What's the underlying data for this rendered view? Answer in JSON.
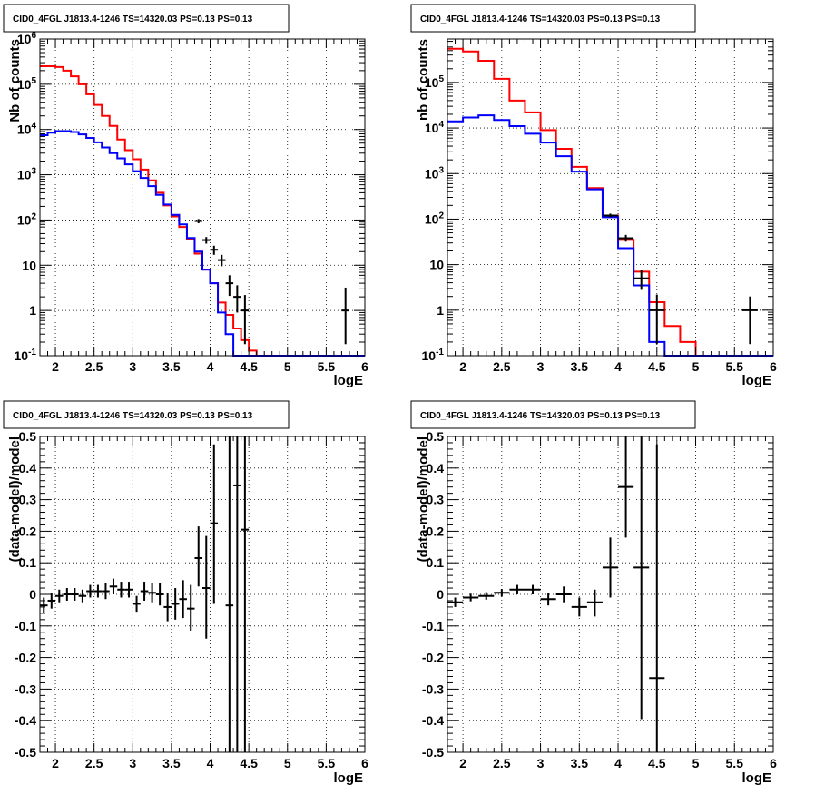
{
  "colors": {
    "data": "#000000",
    "model_red": "#ff0000",
    "model_blue": "#0000ff",
    "grid": "#000000",
    "background": "#ffffff"
  },
  "chart_data": [
    {
      "type": "line",
      "id": "tl",
      "title": "CID0_4FGL J1813.4-1246 TS=14320.03 PS=0.13 PS=0.13",
      "xlabel": "logE",
      "ylabel": "Nb of counts",
      "yscale": "log",
      "xlim": [
        1.8,
        6.0
      ],
      "ylim": [
        0.1,
        1000000
      ],
      "xticks": [
        2,
        2.5,
        3,
        3.5,
        4,
        4.5,
        5,
        5.5,
        6
      ],
      "xtick_labels": [
        "2",
        "2.5",
        "3",
        "3.5",
        "4",
        "4.5",
        "5",
        "5.5",
        "6"
      ],
      "yticks": [
        0.1,
        1,
        10,
        100,
        1000,
        10000,
        100000,
        1000000
      ],
      "ytick_labels": [
        "10^-1",
        "1",
        "10",
        "10^2",
        "10^3",
        "10^4",
        "10^5",
        "10^6"
      ],
      "grid": true,
      "series": [
        {
          "color": "#ff0000",
          "step_edges": [
            1.8,
            1.9,
            2.0,
            2.1,
            2.2,
            2.3,
            2.4,
            2.5,
            2.6,
            2.7,
            2.8,
            2.9,
            3.0,
            3.1,
            3.2,
            3.3,
            3.4,
            3.5,
            3.6,
            3.7,
            3.8,
            3.9,
            4.0,
            4.1,
            4.2,
            4.3,
            4.4,
            4.5,
            4.6,
            4.7,
            4.8,
            4.9,
            5.0,
            5.1,
            5.2,
            5.3,
            5.4,
            5.5,
            5.6,
            5.7,
            5.8,
            5.9,
            6.0
          ],
          "values": [
            250000,
            250000,
            240000,
            200000,
            150000,
            100000,
            60000,
            35000,
            20000,
            12000,
            6000,
            3500,
            2200,
            1300,
            750,
            400,
            210,
            120,
            70,
            38,
            18,
            8,
            4,
            1.5,
            0.8,
            0.4,
            0.22,
            0.13,
            0.1,
            0.1,
            0.1,
            0.1,
            0.1,
            0.1,
            0.1,
            0.1,
            0.1,
            0.1,
            0.1,
            0.1,
            0.1,
            0.1
          ]
        },
        {
          "color": "#0000ff",
          "step_edges": [
            1.8,
            1.9,
            2.0,
            2.1,
            2.2,
            2.3,
            2.4,
            2.5,
            2.6,
            2.7,
            2.8,
            2.9,
            3.0,
            3.1,
            3.2,
            3.3,
            3.4,
            3.5,
            3.6,
            3.7,
            3.8,
            3.9,
            4.0,
            4.1,
            4.2,
            4.3,
            4.4,
            4.5,
            4.6,
            4.7,
            4.8,
            4.9,
            5.0,
            5.1,
            5.2,
            5.3,
            5.4,
            5.5,
            5.6,
            5.7,
            5.8,
            5.9,
            6.0
          ],
          "values": [
            7500,
            8500,
            9200,
            9200,
            8800,
            7800,
            6500,
            5200,
            4000,
            3000,
            2300,
            1700,
            1200,
            850,
            560,
            360,
            220,
            130,
            80,
            40,
            20,
            8,
            4,
            0.9,
            0.3,
            0.1,
            0.1,
            0.1,
            0.1,
            0.1,
            0.1,
            0.1,
            0.1,
            0.1,
            0.1,
            0.1,
            0.1,
            0.1,
            0.1,
            0.1,
            0.1,
            0.1
          ]
        }
      ],
      "points": [
        {
          "x": 3.85,
          "y": 95,
          "xerr": 0.05,
          "ylo": 85,
          "yhi": 105
        },
        {
          "x": 3.95,
          "y": 36,
          "xerr": 0.05,
          "ylo": 30,
          "yhi": 42
        },
        {
          "x": 4.05,
          "y": 22,
          "xerr": 0.05,
          "ylo": 17,
          "yhi": 27
        },
        {
          "x": 4.15,
          "y": 13,
          "xerr": 0.05,
          "ylo": 9.5,
          "yhi": 17
        },
        {
          "x": 4.25,
          "y": 4,
          "xerr": 0.05,
          "ylo": 2.1,
          "yhi": 6
        },
        {
          "x": 4.35,
          "y": 2,
          "xerr": 0.05,
          "ylo": 0.9,
          "yhi": 3.6
        },
        {
          "x": 4.45,
          "y": 1,
          "xerr": 0.05,
          "ylo": 0.18,
          "yhi": 2.2
        },
        {
          "x": 5.75,
          "y": 1,
          "xerr": 0.05,
          "ylo": 0.18,
          "yhi": 3.2
        }
      ]
    },
    {
      "type": "line",
      "id": "tr",
      "title": "CID0_4FGL J1813.4-1246 TS=14320.03 PS=0.13 PS=0.13",
      "xlabel": "logE",
      "ylabel": "nb of counts",
      "yscale": "log",
      "xlim": [
        1.8,
        6.0
      ],
      "ylim": [
        0.1,
        900000
      ],
      "xticks": [
        2,
        2.5,
        3,
        3.5,
        4,
        4.5,
        5,
        5.5,
        6
      ],
      "xtick_labels": [
        "2",
        "2.5",
        "3",
        "3.5",
        "4",
        "4.5",
        "5",
        "5.5",
        "6"
      ],
      "yticks": [
        0.1,
        1,
        10,
        100,
        1000,
        10000,
        100000
      ],
      "ytick_labels": [
        "10^-1",
        "1",
        "10",
        "10^2",
        "10^3",
        "10^4",
        "10^5"
      ],
      "grid": true,
      "series": [
        {
          "color": "#ff0000",
          "step_edges": [
            1.8,
            2.0,
            2.2,
            2.4,
            2.6,
            2.8,
            3.0,
            3.2,
            3.4,
            3.6,
            3.8,
            4.0,
            4.2,
            4.4,
            4.6,
            4.8,
            5.0,
            5.2,
            5.4,
            5.6,
            5.8,
            6.0
          ],
          "values": [
            550000,
            480000,
            300000,
            120000,
            40000,
            22000,
            9000,
            3500,
            1400,
            480,
            120,
            35,
            7,
            1.5,
            0.45,
            0.2,
            0.1,
            0.1,
            0.1,
            0.1,
            0.1
          ]
        },
        {
          "color": "#0000ff",
          "step_edges": [
            1.8,
            2.0,
            2.2,
            2.4,
            2.6,
            2.8,
            3.0,
            3.2,
            3.4,
            3.6,
            3.8,
            4.0,
            4.2,
            4.4,
            4.6,
            4.8,
            5.0,
            5.2,
            5.4,
            5.6,
            5.8,
            6.0
          ],
          "values": [
            14000,
            17000,
            19000,
            15000,
            11000,
            7500,
            4800,
            2400,
            1100,
            450,
            110,
            23,
            3.5,
            0.2,
            0.1,
            0.1,
            0.1,
            0.1,
            0.1,
            0.1,
            0.1
          ]
        }
      ],
      "points": [
        {
          "x": 3.9,
          "y": 120,
          "xerr": 0.1,
          "ylo": 110,
          "yhi": 132
        },
        {
          "x": 4.1,
          "y": 38,
          "xerr": 0.1,
          "ylo": 32,
          "yhi": 45
        },
        {
          "x": 4.3,
          "y": 5,
          "xerr": 0.1,
          "ylo": 2.8,
          "yhi": 7.5
        },
        {
          "x": 4.5,
          "y": 1,
          "xerr": 0.1,
          "ylo": 0.18,
          "yhi": 2.2
        },
        {
          "x": 5.7,
          "y": 1,
          "xerr": 0.1,
          "ylo": 0.18,
          "yhi": 2.0
        }
      ]
    },
    {
      "type": "scatter",
      "id": "bl",
      "title": "CID0_4FGL J1813.4-1246 TS=14320.03 PS=0.13 PS=0.13",
      "xlabel": "logE",
      "ylabel": "(data-model)/model",
      "yscale": "linear",
      "xlim": [
        1.8,
        6.0
      ],
      "ylim": [
        -0.5,
        0.5
      ],
      "xticks": [
        2,
        2.5,
        3,
        3.5,
        4,
        4.5,
        5,
        5.5,
        6
      ],
      "xtick_labels": [
        "2",
        "2.5",
        "3",
        "3.5",
        "4",
        "4.5",
        "5",
        "5.5",
        "6"
      ],
      "yticks": [
        -0.5,
        -0.4,
        -0.3,
        -0.2,
        -0.1,
        0,
        0.1,
        0.2,
        0.3,
        0.4,
        0.5
      ],
      "ytick_labels": [
        "-0.5",
        "-0.4",
        "-0.3",
        "-0.2",
        "-0.1",
        "0",
        "0.1",
        "0.2",
        "0.3",
        "0.4",
        "0.5"
      ],
      "grid": true,
      "points": [
        {
          "x": 1.85,
          "y": -0.035,
          "xerr": 0.05,
          "ylo": -0.06,
          "yhi": -0.01
        },
        {
          "x": 1.95,
          "y": -0.02,
          "xerr": 0.05,
          "ylo": -0.045,
          "yhi": 0.005
        },
        {
          "x": 2.05,
          "y": -0.005,
          "xerr": 0.05,
          "ylo": -0.025,
          "yhi": 0.015
        },
        {
          "x": 2.15,
          "y": 0.0,
          "xerr": 0.05,
          "ylo": -0.02,
          "yhi": 0.02
        },
        {
          "x": 2.25,
          "y": 0.0,
          "xerr": 0.05,
          "ylo": -0.02,
          "yhi": 0.02
        },
        {
          "x": 2.35,
          "y": -0.005,
          "xerr": 0.05,
          "ylo": -0.025,
          "yhi": 0.015
        },
        {
          "x": 2.45,
          "y": 0.01,
          "xerr": 0.05,
          "ylo": -0.01,
          "yhi": 0.03
        },
        {
          "x": 2.55,
          "y": 0.01,
          "xerr": 0.05,
          "ylo": -0.01,
          "yhi": 0.03
        },
        {
          "x": 2.65,
          "y": 0.01,
          "xerr": 0.05,
          "ylo": -0.015,
          "yhi": 0.035
        },
        {
          "x": 2.75,
          "y": 0.025,
          "xerr": 0.05,
          "ylo": 0.0,
          "yhi": 0.05
        },
        {
          "x": 2.85,
          "y": 0.015,
          "xerr": 0.05,
          "ylo": -0.01,
          "yhi": 0.04
        },
        {
          "x": 2.95,
          "y": 0.015,
          "xerr": 0.05,
          "ylo": -0.01,
          "yhi": 0.04
        },
        {
          "x": 3.05,
          "y": -0.03,
          "xerr": 0.05,
          "ylo": -0.055,
          "yhi": -0.005
        },
        {
          "x": 3.15,
          "y": 0.01,
          "xerr": 0.05,
          "ylo": -0.02,
          "yhi": 0.04
        },
        {
          "x": 3.25,
          "y": 0.005,
          "xerr": 0.05,
          "ylo": -0.025,
          "yhi": 0.035
        },
        {
          "x": 3.35,
          "y": 0.0,
          "xerr": 0.05,
          "ylo": -0.035,
          "yhi": 0.035
        },
        {
          "x": 3.45,
          "y": -0.04,
          "xerr": 0.05,
          "ylo": -0.085,
          "yhi": 0.005
        },
        {
          "x": 3.55,
          "y": -0.03,
          "xerr": 0.05,
          "ylo": -0.08,
          "yhi": 0.02
        },
        {
          "x": 3.65,
          "y": -0.015,
          "xerr": 0.05,
          "ylo": -0.075,
          "yhi": 0.045
        },
        {
          "x": 3.75,
          "y": -0.045,
          "xerr": 0.05,
          "ylo": -0.115,
          "yhi": 0.03
        },
        {
          "x": 3.85,
          "y": 0.115,
          "xerr": 0.05,
          "ylo": 0.025,
          "yhi": 0.215
        },
        {
          "x": 3.95,
          "y": 0.02,
          "xerr": 0.05,
          "ylo": -0.14,
          "yhi": 0.185
        },
        {
          "x": 4.05,
          "y": 0.225,
          "xerr": 0.05,
          "ylo": -0.03,
          "yhi": 0.475
        },
        {
          "x": 4.25,
          "y": -0.035,
          "xerr": 0.05,
          "ylo": -0.5,
          "yhi": 0.5
        },
        {
          "x": 4.35,
          "y": 0.345,
          "xerr": 0.05,
          "ylo": -0.5,
          "yhi": 0.5
        },
        {
          "x": 4.45,
          "y": 0.205,
          "xerr": 0.05,
          "ylo": -0.5,
          "yhi": 0.5
        }
      ]
    },
    {
      "type": "scatter",
      "id": "br",
      "title": "CID0_4FGL J1813.4-1246 TS=14320.03 PS=0.13 PS=0.13",
      "xlabel": "logE",
      "ylabel": "(data-model)/model",
      "yscale": "linear",
      "xlim": [
        1.8,
        6.0
      ],
      "ylim": [
        -0.5,
        0.5
      ],
      "xticks": [
        2,
        2.5,
        3,
        3.5,
        4,
        4.5,
        5,
        5.5,
        6
      ],
      "xtick_labels": [
        "2",
        "2.5",
        "3",
        "3.5",
        "4",
        "4.5",
        "5",
        "5.5",
        "6"
      ],
      "yticks": [
        -0.5,
        -0.4,
        -0.3,
        -0.2,
        -0.1,
        0,
        0.1,
        0.2,
        0.3,
        0.4,
        0.5
      ],
      "ytick_labels": [
        "-0.5",
        "-0.4",
        "-0.3",
        "-0.2",
        "-0.1",
        "0",
        "0.1",
        "0.2",
        "0.3",
        "0.4",
        "0.5"
      ],
      "grid": true,
      "points": [
        {
          "x": 1.9,
          "y": -0.025,
          "xerr": 0.1,
          "ylo": -0.04,
          "yhi": -0.01
        },
        {
          "x": 2.1,
          "y": -0.01,
          "xerr": 0.1,
          "ylo": -0.022,
          "yhi": 0.002
        },
        {
          "x": 2.3,
          "y": -0.005,
          "xerr": 0.1,
          "ylo": -0.017,
          "yhi": 0.007
        },
        {
          "x": 2.5,
          "y": 0.005,
          "xerr": 0.1,
          "ylo": -0.007,
          "yhi": 0.017
        },
        {
          "x": 2.7,
          "y": 0.015,
          "xerr": 0.1,
          "ylo": 0.0,
          "yhi": 0.03
        },
        {
          "x": 2.9,
          "y": 0.015,
          "xerr": 0.1,
          "ylo": 0.0,
          "yhi": 0.03
        },
        {
          "x": 3.1,
          "y": -0.015,
          "xerr": 0.1,
          "ylo": -0.035,
          "yhi": 0.005
        },
        {
          "x": 3.3,
          "y": 0.0,
          "xerr": 0.1,
          "ylo": -0.025,
          "yhi": 0.025
        },
        {
          "x": 3.5,
          "y": -0.04,
          "xerr": 0.1,
          "ylo": -0.07,
          "yhi": -0.01
        },
        {
          "x": 3.7,
          "y": -0.025,
          "xerr": 0.1,
          "ylo": -0.07,
          "yhi": 0.015
        },
        {
          "x": 3.9,
          "y": 0.085,
          "xerr": 0.1,
          "ylo": -0.01,
          "yhi": 0.18
        },
        {
          "x": 4.1,
          "y": 0.34,
          "xerr": 0.1,
          "ylo": 0.18,
          "yhi": 0.5
        },
        {
          "x": 4.3,
          "y": 0.085,
          "xerr": 0.1,
          "ylo": -0.395,
          "yhi": 0.5
        },
        {
          "x": 4.5,
          "y": -0.265,
          "xerr": 0.1,
          "ylo": -0.5,
          "yhi": 0.475
        }
      ]
    }
  ]
}
